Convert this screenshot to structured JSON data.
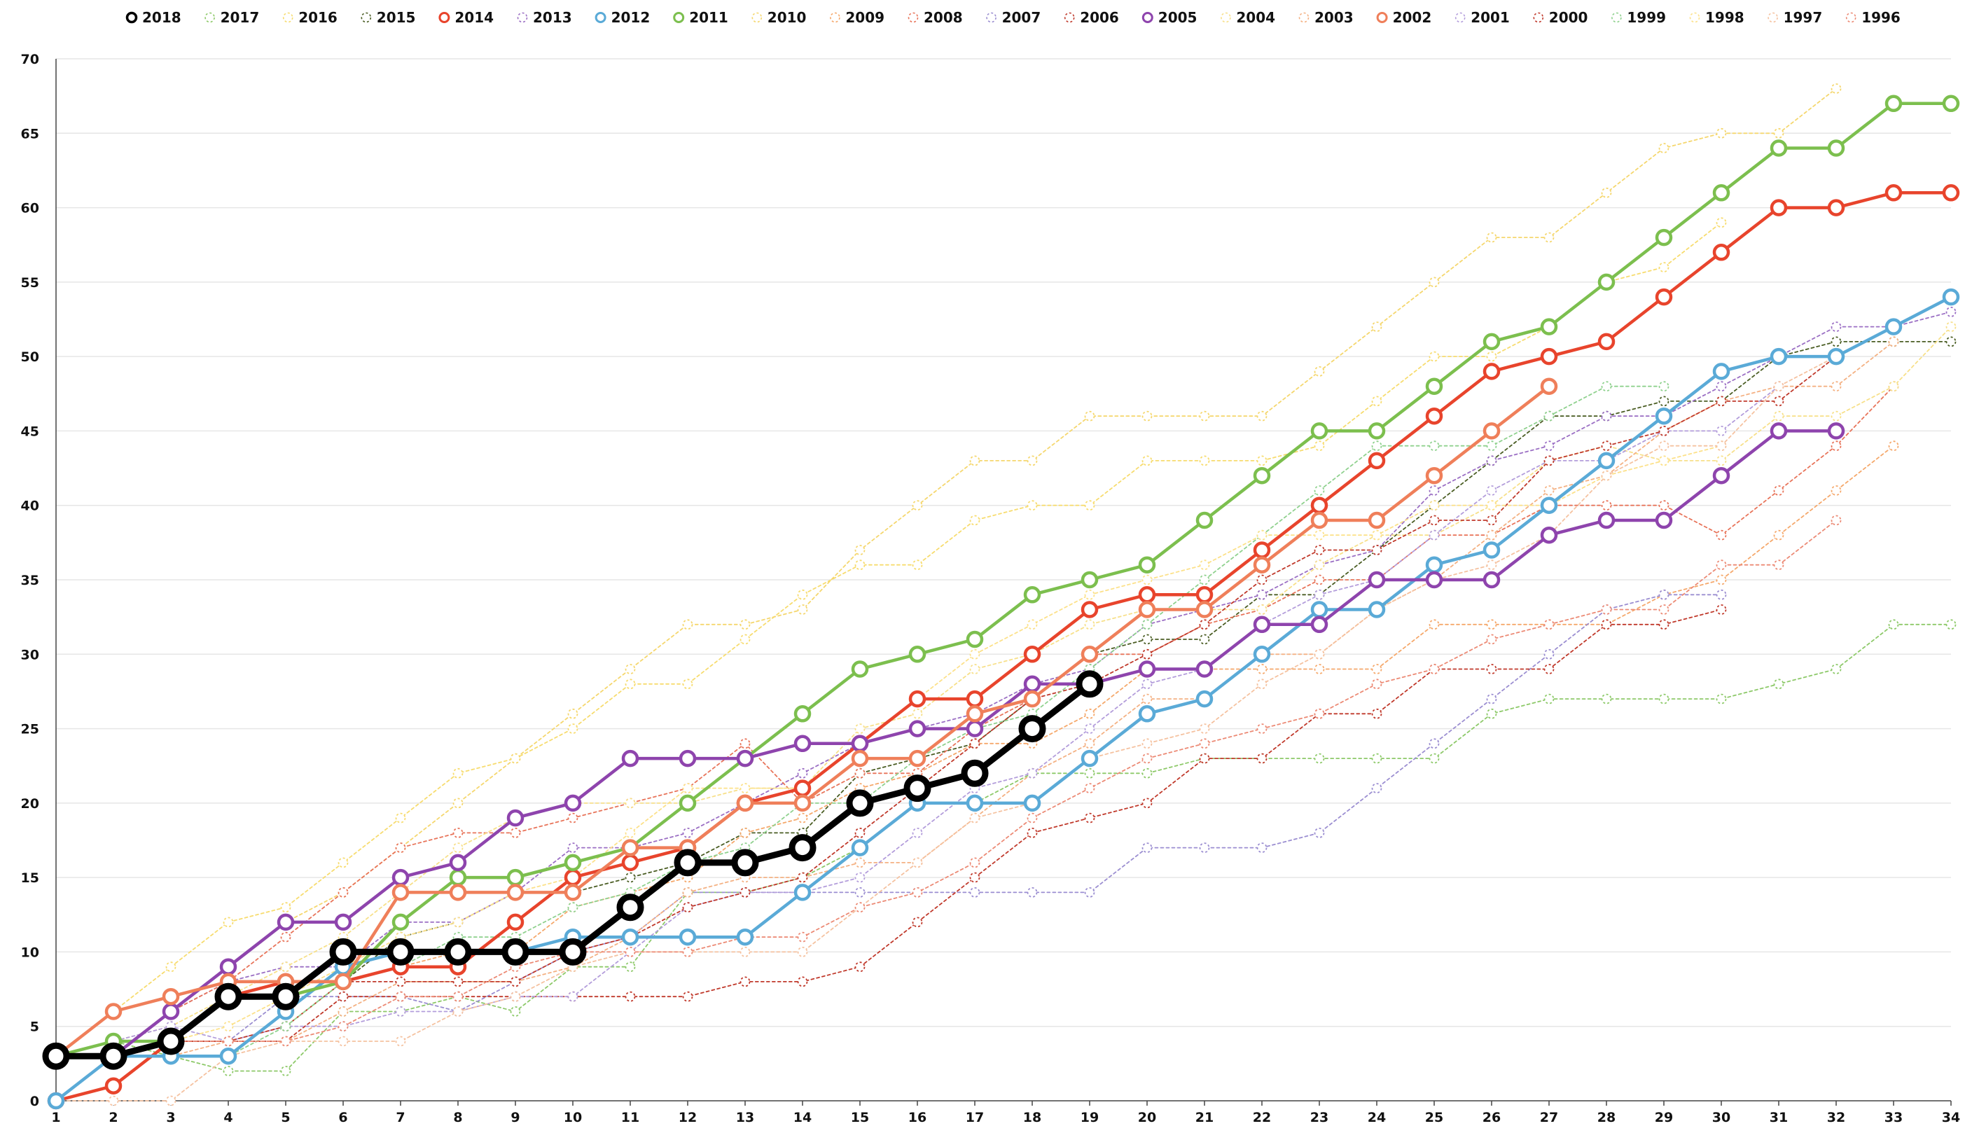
{
  "chart_data": {
    "type": "line",
    "title": "",
    "xlabel": "",
    "ylabel": "",
    "ylim": [
      0,
      70
    ],
    "xlim": [
      1,
      34
    ],
    "grid": true,
    "legend_position": "top",
    "x_ticks": [
      1,
      2,
      3,
      4,
      5,
      6,
      7,
      8,
      9,
      10,
      11,
      12,
      13,
      14,
      15,
      16,
      17,
      18,
      19,
      20,
      21,
      22,
      23,
      24,
      25,
      26,
      27,
      28,
      29,
      30,
      31,
      32,
      33,
      34
    ],
    "y_ticks": [
      0,
      5,
      10,
      15,
      20,
      25,
      30,
      35,
      40,
      45,
      50,
      55,
      60,
      65,
      70
    ],
    "series": [
      {
        "name": "2018",
        "color": "#000000",
        "style": "thick",
        "values": [
          3,
          3,
          4,
          7,
          7,
          10,
          10,
          10,
          10,
          10,
          13,
          16,
          16,
          17,
          20,
          21,
          22,
          25,
          28
        ]
      },
      {
        "name": "2017",
        "color": "#8dc969",
        "style": "dotted",
        "values": [
          3,
          4,
          3,
          2,
          2,
          6,
          6,
          7,
          6,
          9,
          9,
          14,
          14,
          15,
          17,
          20,
          20,
          22,
          22,
          22,
          23,
          23,
          23,
          23,
          23,
          26,
          27,
          27,
          27,
          27,
          28,
          29,
          32,
          32
        ]
      },
      {
        "name": "2016",
        "color": "#f7dc6f",
        "style": "dotted",
        "values": [
          3,
          6,
          9,
          12,
          13,
          16,
          19,
          22,
          23,
          25,
          28,
          28,
          31,
          34,
          36,
          36,
          39,
          40,
          40,
          43,
          43,
          43,
          44,
          47,
          50,
          50,
          52,
          55,
          56,
          59
        ]
      },
      {
        "name": "2015",
        "color": "#4a5d23",
        "style": "dotted",
        "values": [
          3,
          4,
          4,
          7,
          8,
          8,
          11,
          12,
          14,
          14,
          15,
          16,
          18,
          18,
          22,
          23,
          24,
          27,
          30,
          31,
          31,
          34,
          34,
          37,
          40,
          43,
          46,
          46,
          47,
          47,
          50,
          51,
          51,
          51
        ]
      },
      {
        "name": "2014",
        "color": "#e8442c",
        "style": "solid",
        "values": [
          0,
          1,
          4,
          7,
          8,
          8,
          9,
          9,
          12,
          15,
          16,
          17,
          20,
          21,
          24,
          27,
          27,
          30,
          33,
          34,
          34,
          37,
          40,
          43,
          46,
          49,
          50,
          51,
          54,
          57,
          60,
          60,
          61,
          61
        ]
      },
      {
        "name": "2013",
        "color": "#9b6fc4",
        "style": "dotted",
        "values": [
          3,
          3,
          6,
          8,
          9,
          9,
          12,
          12,
          14,
          17,
          17,
          18,
          20,
          22,
          24,
          25,
          26,
          28,
          29,
          32,
          33,
          34,
          36,
          37,
          41,
          43,
          44,
          46,
          46,
          48,
          50,
          52,
          52,
          53
        ]
      },
      {
        "name": "2012",
        "color": "#5aaad7",
        "style": "solid",
        "values": [
          0,
          3,
          3,
          3,
          6,
          9,
          10,
          10,
          10,
          11,
          11,
          11,
          11,
          14,
          17,
          20,
          20,
          20,
          23,
          26,
          27,
          30,
          33,
          33,
          36,
          37,
          40,
          43,
          46,
          49,
          50,
          50,
          52,
          54
        ]
      },
      {
        "name": "2011",
        "color": "#7cbf4e",
        "style": "solid",
        "values": [
          3,
          4,
          4,
          7,
          7,
          8,
          12,
          15,
          15,
          16,
          17,
          20,
          23,
          26,
          29,
          30,
          31,
          34,
          35,
          36,
          39,
          42,
          45,
          45,
          48,
          51,
          52,
          55,
          58,
          61,
          64,
          64,
          67,
          67
        ]
      },
      {
        "name": "2010",
        "color": "#f5d76e",
        "style": "dotted",
        "values": [
          3,
          3,
          6,
          9,
          12,
          14,
          17,
          20,
          23,
          26,
          29,
          32,
          32,
          33,
          37,
          40,
          43,
          43,
          46,
          46,
          46,
          46,
          49,
          52,
          55,
          58,
          58,
          61,
          64,
          65,
          65,
          68
        ]
      },
      {
        "name": "2009",
        "color": "#f5a86b",
        "style": "dotted",
        "values": [
          0,
          3,
          4,
          4,
          5,
          8,
          9,
          10,
          10,
          13,
          14,
          15,
          18,
          19,
          21,
          22,
          24,
          24,
          26,
          29,
          29,
          29,
          29,
          29,
          32,
          32,
          32,
          32,
          34,
          35,
          38,
          41,
          44
        ]
      },
      {
        "name": "2008",
        "color": "#e8745a",
        "style": "dotted",
        "values": [
          3,
          3,
          6,
          8,
          11,
          14,
          17,
          18,
          18,
          19,
          20,
          21,
          24,
          20,
          22,
          22,
          25,
          27,
          30,
          30,
          32,
          33,
          35,
          35,
          38,
          38,
          40,
          40,
          40,
          38,
          41,
          44,
          48
        ]
      },
      {
        "name": "2007",
        "color": "#9b8ed1",
        "style": "dotted",
        "values": [
          3,
          3,
          4,
          4,
          7,
          7,
          7,
          6,
          8,
          10,
          11,
          14,
          14,
          14,
          14,
          14,
          14,
          14,
          14,
          17,
          17,
          17,
          18,
          21,
          24,
          27,
          30,
          33,
          34,
          34
        ]
      },
      {
        "name": "2006",
        "color": "#c0392b",
        "style": "dotted",
        "values": [
          0,
          3,
          4,
          4,
          4,
          7,
          7,
          7,
          7,
          7,
          7,
          7,
          8,
          8,
          9,
          12,
          15,
          18,
          19,
          20,
          23,
          23,
          26,
          26,
          29,
          29,
          29,
          32,
          32,
          33
        ]
      },
      {
        "name": "2005",
        "color": "#8e44ad",
        "style": "solid",
        "values": [
          3,
          3,
          6,
          9,
          12,
          12,
          15,
          16,
          19,
          20,
          23,
          23,
          23,
          24,
          24,
          25,
          25,
          28,
          28,
          29,
          29,
          32,
          32,
          35,
          35,
          35,
          38,
          39,
          39,
          42,
          45,
          45
        ]
      },
      {
        "name": "2004",
        "color": "#f7e08a",
        "style": "dotted",
        "values": [
          3,
          4,
          5,
          7,
          9,
          11,
          14,
          17,
          19,
          20,
          20,
          20,
          21,
          21,
          25,
          26,
          29,
          30,
          32,
          33,
          33,
          33,
          36,
          38,
          38,
          40,
          43,
          44,
          43,
          43,
          46,
          46,
          48,
          52
        ]
      },
      {
        "name": "2003",
        "color": "#f4b183",
        "style": "dotted",
        "values": [
          3,
          3,
          3,
          4,
          4,
          6,
          8,
          8,
          8,
          9,
          11,
          14,
          15,
          15,
          16,
          16,
          19,
          22,
          24,
          27,
          27,
          30,
          30,
          33,
          35,
          38,
          41,
          42,
          45,
          47,
          48,
          48,
          51
        ]
      },
      {
        "name": "2002",
        "color": "#ef7f5a",
        "style": "solid",
        "values": [
          3,
          6,
          7,
          8,
          8,
          8,
          14,
          14,
          14,
          14,
          17,
          17,
          20,
          20,
          23,
          23,
          26,
          27,
          30,
          33,
          33,
          36,
          39,
          39,
          42,
          45,
          48
        ]
      },
      {
        "name": "2001",
        "color": "#b39ddb",
        "style": "dotted",
        "values": [
          3,
          4,
          5,
          4,
          5,
          5,
          6,
          6,
          7,
          7,
          10,
          13,
          14,
          14,
          15,
          18,
          21,
          22,
          25,
          28,
          29,
          32,
          34,
          35,
          38,
          41,
          43,
          43,
          45,
          45,
          48
        ]
      },
      {
        "name": "2000",
        "color": "#c0392b",
        "style": "dotted",
        "values": [
          3,
          4,
          4,
          4,
          5,
          8,
          8,
          8,
          8,
          10,
          11,
          13,
          14,
          15,
          18,
          21,
          24,
          27,
          28,
          30,
          32,
          35,
          37,
          37,
          39,
          39,
          43,
          44,
          45,
          47,
          47,
          50
        ]
      },
      {
        "name": "1999",
        "color": "#8fd18e",
        "style": "dotted",
        "values": [
          0,
          3,
          3,
          3,
          5,
          8,
          9,
          11,
          11,
          13,
          14,
          16,
          17,
          20,
          20,
          23,
          25,
          26,
          29,
          32,
          35,
          38,
          41,
          44,
          44,
          44,
          46,
          48,
          48
        ]
      },
      {
        "name": "1998",
        "color": "#fce18a",
        "style": "dotted",
        "values": [
          0,
          3,
          4,
          5,
          7,
          9,
          11,
          12,
          14,
          15,
          18,
          21,
          21,
          21,
          24,
          27,
          30,
          32,
          34,
          35,
          36,
          38,
          38,
          38,
          40,
          40,
          40,
          42,
          43,
          44
        ]
      },
      {
        "name": "1997",
        "color": "#f5c2a0",
        "style": "dotted",
        "values": [
          0,
          0,
          0,
          3,
          4,
          4,
          4,
          6,
          7,
          9,
          10,
          10,
          10,
          10,
          13,
          16,
          19,
          20,
          23,
          24,
          25,
          28,
          30,
          33,
          35,
          36,
          38,
          42,
          44,
          44,
          48,
          50
        ]
      },
      {
        "name": "1996",
        "color": "#ec8a75",
        "style": "dotted",
        "values": [
          3,
          3,
          4,
          4,
          4,
          5,
          7,
          7,
          9,
          10,
          10,
          10,
          11,
          11,
          13,
          14,
          16,
          19,
          21,
          23,
          24,
          25,
          26,
          28,
          29,
          31,
          32,
          33,
          33,
          36,
          36,
          39
        ]
      }
    ]
  }
}
